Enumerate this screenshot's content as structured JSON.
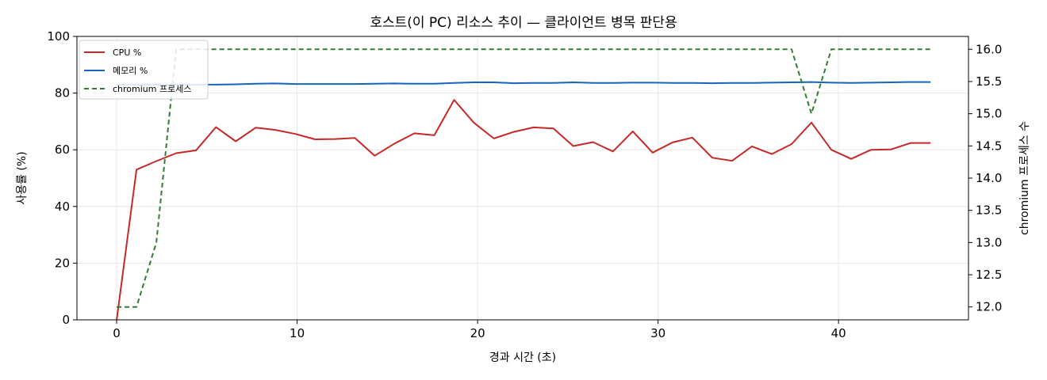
{
  "chart_data": {
    "type": "line",
    "title": "호스트(이 PC) 리소스 추이 — 클라이언트 병목 판단용",
    "xlabel": "경과 시간 (초)",
    "ylabel": "사용률 (%)",
    "y2label": "chromium 프로세스 수",
    "xlim": [
      -2.2,
      47.2
    ],
    "ylim": [
      0,
      100
    ],
    "y2lim": [
      11.8,
      16.2
    ],
    "xticks": [
      0,
      10,
      20,
      30,
      40
    ],
    "yticks": [
      0,
      20,
      40,
      60,
      80,
      100
    ],
    "y2ticks": [
      12.0,
      12.5,
      13.0,
      13.5,
      14.0,
      14.5,
      15.0,
      15.5,
      16.0
    ],
    "y2tick_labels": [
      "12.0",
      "12.5",
      "13.0",
      "13.5",
      "14.0",
      "14.5",
      "15.0",
      "15.5",
      "16.0"
    ],
    "grid": true,
    "legend_position": "top-left",
    "x": [
      0,
      1.1,
      2.2,
      3.3,
      4.4,
      5.5,
      6.6,
      7.7,
      8.8,
      9.9,
      11.0,
      12.1,
      13.2,
      14.3,
      15.4,
      16.5,
      17.6,
      18.7,
      19.8,
      20.9,
      22.0,
      23.1,
      24.2,
      25.3,
      26.4,
      27.5,
      28.6,
      29.7,
      30.8,
      31.9,
      33.0,
      34.1,
      35.2,
      36.3,
      37.4,
      38.5,
      39.6,
      40.7,
      41.8,
      42.9,
      44.0,
      45.1
    ],
    "series": [
      {
        "name": "CPU %",
        "axis": "left",
        "color": "#c62828",
        "style": "solid",
        "values": [
          0,
          53.0,
          56.0,
          58.8,
          59.8,
          68.0,
          63.0,
          67.8,
          67.0,
          65.6,
          63.7,
          63.8,
          64.2,
          57.9,
          62.2,
          65.8,
          65.1,
          77.6,
          69.5,
          64.0,
          66.3,
          67.9,
          67.5,
          61.3,
          62.7,
          59.4,
          66.5,
          59.0,
          62.6,
          64.3,
          57.2,
          56.1,
          61.2,
          58.5,
          62.0,
          69.6,
          60.0,
          56.8,
          60.0,
          60.1,
          62.4,
          62.4
        ]
      },
      {
        "name": "메모리 %",
        "axis": "left",
        "color": "#1565c0",
        "style": "solid",
        "values": [
          83.0,
          83.0,
          83.0,
          83.0,
          83.0,
          83.0,
          83.1,
          83.3,
          83.4,
          83.2,
          83.2,
          83.2,
          83.2,
          83.3,
          83.4,
          83.3,
          83.3,
          83.6,
          83.8,
          83.8,
          83.5,
          83.6,
          83.6,
          83.8,
          83.6,
          83.6,
          83.7,
          83.7,
          83.6,
          83.6,
          83.5,
          83.6,
          83.6,
          83.7,
          83.8,
          83.9,
          83.7,
          83.6,
          83.7,
          83.8,
          83.9,
          83.9
        ]
      },
      {
        "name": "chromium 프로세스",
        "axis": "right",
        "color": "#2e7d32",
        "style": "dashed",
        "values": [
          12,
          12,
          13,
          16,
          16,
          16,
          16,
          16,
          16,
          16,
          16,
          16,
          16,
          16,
          16,
          16,
          16,
          16,
          16,
          16,
          16,
          16,
          16,
          16,
          16,
          16,
          16,
          16,
          16,
          16,
          16,
          16,
          16,
          16,
          16,
          15,
          16,
          16,
          16,
          16,
          16,
          16
        ]
      }
    ]
  }
}
